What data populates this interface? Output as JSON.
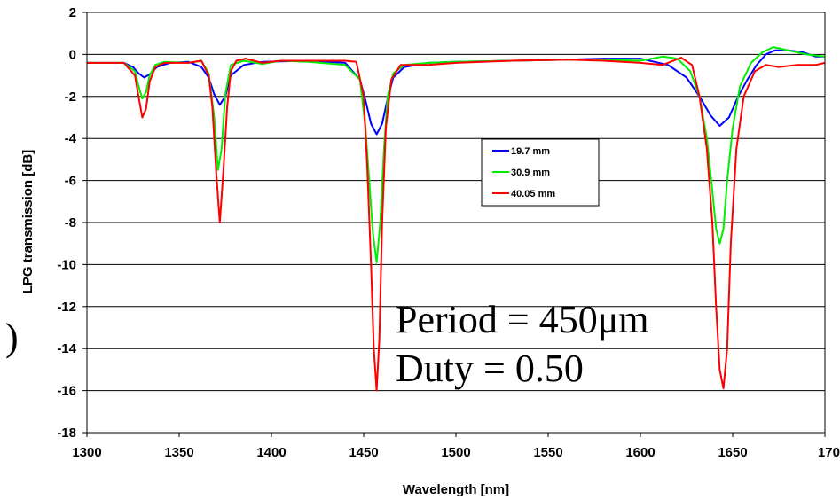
{
  "chart_data": {
    "type": "line",
    "title": "",
    "xlabel": "Wavelength [nm]",
    "ylabel": "LPG transmission [dB]",
    "xlim": [
      1300,
      1700
    ],
    "ylim": [
      -18,
      2
    ],
    "xticks": [
      "1300",
      "1350",
      "1400",
      "1450",
      "1500",
      "1550",
      "1600",
      "1650",
      "170"
    ],
    "yticks": [
      "2",
      "0",
      "-2",
      "-4",
      "-6",
      "-8",
      "-10",
      "-12",
      "-14",
      "-16",
      "-18"
    ],
    "grid": "horizontal",
    "legend_position": "center",
    "annotations": [
      "Period = 450μm",
      "Duty = 0.50"
    ],
    "stray_mark": ")",
    "series": [
      {
        "name": "19.7 mm",
        "color": "#0000ff",
        "x": [
          1300,
          1320,
          1325,
          1328,
          1331,
          1334,
          1338,
          1345,
          1355,
          1362,
          1366,
          1369,
          1372,
          1375,
          1378,
          1385,
          1395,
          1420,
          1440,
          1448,
          1451,
          1454,
          1457,
          1460,
          1463,
          1466,
          1472,
          1485,
          1500,
          1530,
          1560,
          1580,
          1600,
          1615,
          1625,
          1632,
          1638,
          1643,
          1648,
          1653,
          1658,
          1663,
          1668,
          1673,
          1680,
          1688,
          1695,
          1700
        ],
        "y": [
          -0.4,
          -0.4,
          -0.6,
          -0.9,
          -1.1,
          -0.95,
          -0.6,
          -0.4,
          -0.35,
          -0.6,
          -1.1,
          -1.9,
          -2.4,
          -2.0,
          -1.0,
          -0.5,
          -0.35,
          -0.3,
          -0.4,
          -1.2,
          -2.2,
          -3.3,
          -3.8,
          -3.3,
          -2.1,
          -1.1,
          -0.6,
          -0.4,
          -0.35,
          -0.3,
          -0.25,
          -0.2,
          -0.2,
          -0.5,
          -1.1,
          -2.0,
          -2.9,
          -3.4,
          -3.0,
          -2.0,
          -1.2,
          -0.5,
          0.0,
          0.2,
          0.2,
          0.1,
          -0.1,
          -0.1
        ]
      },
      {
        "name": "30.9 mm",
        "color": "#00ee00",
        "x": [
          1300,
          1320,
          1326,
          1328,
          1330,
          1332,
          1334,
          1337,
          1342,
          1355,
          1362,
          1366,
          1369,
          1371,
          1373,
          1375,
          1378,
          1385,
          1395,
          1405,
          1420,
          1440,
          1448,
          1451,
          1453,
          1455,
          1457,
          1459,
          1461,
          1463,
          1466,
          1472,
          1485,
          1500,
          1530,
          1560,
          1580,
          1600,
          1612,
          1620,
          1627,
          1632,
          1636,
          1639,
          1641,
          1643,
          1645,
          1647,
          1650,
          1654,
          1660,
          1666,
          1672,
          1680,
          1690,
          1700
        ],
        "y": [
          -0.4,
          -0.4,
          -0.8,
          -1.5,
          -2.1,
          -1.8,
          -1.0,
          -0.5,
          -0.35,
          -0.4,
          -0.3,
          -0.9,
          -3.0,
          -5.5,
          -4.5,
          -1.9,
          -0.5,
          -0.3,
          -0.45,
          -0.3,
          -0.35,
          -0.5,
          -1.2,
          -3.5,
          -6.0,
          -8.5,
          -9.9,
          -8.0,
          -4.5,
          -2.0,
          -0.9,
          -0.5,
          -0.4,
          -0.35,
          -0.3,
          -0.25,
          -0.25,
          -0.3,
          -0.1,
          -0.2,
          -0.8,
          -2.0,
          -4.0,
          -6.5,
          -8.3,
          -9.0,
          -8.3,
          -6.0,
          -3.5,
          -1.5,
          -0.4,
          0.1,
          0.35,
          0.2,
          0.0,
          -0.1
        ]
      },
      {
        "name": "40.05 mm",
        "color": "#ff0000",
        "x": [
          1300,
          1320,
          1326,
          1328,
          1330,
          1332,
          1334,
          1337,
          1342,
          1355,
          1362,
          1366,
          1368,
          1370,
          1372,
          1374,
          1376,
          1378,
          1381,
          1386,
          1395,
          1405,
          1420,
          1440,
          1446,
          1450,
          1452,
          1454,
          1455.5,
          1457,
          1458.5,
          1460,
          1462,
          1465,
          1470,
          1485,
          1500,
          1530,
          1560,
          1580,
          1600,
          1612,
          1622,
          1628,
          1632,
          1636,
          1639,
          1641,
          1643,
          1645,
          1647,
          1649,
          1652,
          1656,
          1662,
          1668,
          1675,
          1685,
          1695,
          1700
        ],
        "y": [
          -0.4,
          -0.4,
          -1.0,
          -2.0,
          -3.0,
          -2.6,
          -1.3,
          -0.6,
          -0.4,
          -0.4,
          -0.3,
          -1.0,
          -2.5,
          -5.5,
          -8.0,
          -5.5,
          -2.5,
          -0.8,
          -0.3,
          -0.2,
          -0.4,
          -0.3,
          -0.3,
          -0.3,
          -0.35,
          -2.0,
          -5.5,
          -10.0,
          -14.0,
          -16.0,
          -13.5,
          -8.0,
          -3.5,
          -1.2,
          -0.5,
          -0.5,
          -0.4,
          -0.3,
          -0.25,
          -0.3,
          -0.4,
          -0.5,
          -0.15,
          -0.5,
          -2.0,
          -4.5,
          -8.0,
          -12.0,
          -15.0,
          -15.9,
          -14.0,
          -9.0,
          -4.5,
          -2.0,
          -0.8,
          -0.5,
          -0.6,
          -0.5,
          -0.5,
          -0.4
        ]
      }
    ]
  }
}
